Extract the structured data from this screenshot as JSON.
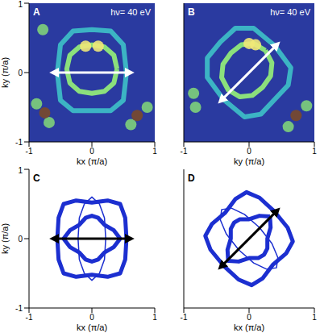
{
  "chart_data": [
    {
      "type": "scatter",
      "title": "A",
      "annotation": "hν= 40 eV",
      "xlabel": "kx (π/a)",
      "ylabel": "ky (π/a)",
      "xlim": [
        -1,
        1
      ],
      "ylim": [
        -1,
        1
      ],
      "xticks": [
        -1,
        0,
        1
      ],
      "yticks": [
        -1,
        0,
        1
      ],
      "series": [
        {
          "type": "line",
          "line_style": "solid",
          "color": "#3cb4c4",
          "x": [
            0.55,
            0.5,
            0.3,
            0,
            -0.3,
            -0.5,
            -0.55,
            -0.5,
            -0.3,
            0,
            0.3,
            0.5,
            0.55
          ],
          "y": [
            0,
            0.4,
            0.6,
            0.62,
            0.6,
            0.4,
            0,
            -0.4,
            -0.55,
            -0.55,
            -0.55,
            -0.4,
            0
          ]
        },
        {
          "type": "line",
          "line_style": "solid",
          "color": "#8be07c",
          "x": [
            0.4,
            0.35,
            0.2,
            0,
            -0.2,
            -0.35,
            -0.4,
            -0.35,
            -0.2,
            0,
            0.2,
            0.35,
            0.4
          ],
          "y": [
            0.05,
            0.25,
            0.37,
            0.4,
            0.37,
            0.25,
            0.05,
            -0.15,
            -0.27,
            -0.3,
            -0.27,
            -0.15,
            0.05
          ]
        },
        {
          "type": "scatter",
          "marker": "circle",
          "color": "#7ed27a",
          "x": [
            -0.88,
            -0.68,
            0.88,
            0.62,
            -0.78
          ],
          "y": [
            -0.45,
            -0.72,
            -0.5,
            -0.75,
            0.62
          ]
        },
        {
          "type": "scatter",
          "marker": "circle",
          "color": "#7a4a2a",
          "x": [
            -0.75,
            0.72
          ],
          "y": [
            -0.58,
            -0.62
          ]
        },
        {
          "type": "scatter",
          "marker": "circle",
          "color": "#f0e878",
          "x": [
            -0.1,
            0.1
          ],
          "y": [
            0.38,
            0.38
          ]
        }
      ]
    },
    {
      "type": "scatter",
      "title": "B",
      "annotation": "hν= 40 eV",
      "xlabel": "ky (π/a)",
      "xlim": [
        -1,
        1
      ],
      "ylim": [
        -1,
        1
      ],
      "xticks": [
        -1,
        0,
        1
      ],
      "yticks": [
        -1,
        0,
        1
      ],
      "tick_labels": "x",
      "series": [
        {
          "type": "line",
          "line_style": "solid",
          "color": "#3cb4c4",
          "x": [
            0.39,
            0.07,
            -0.21,
            -0.44,
            -0.64,
            -0.64,
            -0.39,
            -0.07,
            0.18,
            0.39,
            0.6,
            0.64,
            0.39
          ],
          "y": [
            0.39,
            0.64,
            0.64,
            0.44,
            0.21,
            -0.07,
            -0.39,
            -0.64,
            -0.6,
            -0.39,
            -0.18,
            0.07,
            0.39
          ]
        },
        {
          "type": "line",
          "line_style": "solid",
          "color": "#8be07c",
          "x": [
            0.25,
            0.07,
            -0.12,
            -0.28,
            -0.4,
            -0.42,
            -0.32,
            -0.14,
            0.05,
            0.21,
            0.33,
            0.35,
            0.25
          ],
          "y": [
            0.32,
            0.42,
            0.4,
            0.28,
            0.12,
            -0.07,
            -0.25,
            -0.35,
            -0.33,
            -0.21,
            -0.05,
            0.14,
            0.32
          ]
        },
        {
          "type": "scatter",
          "marker": "circle",
          "color": "#7ed27a",
          "x": [
            0.88,
            0.6,
            -0.85,
            -0.82
          ],
          "y": [
            -0.48,
            -0.78,
            -0.3,
            -0.5
          ]
        },
        {
          "type": "scatter",
          "marker": "circle",
          "color": "#7a4a2a",
          "x": [
            0.72
          ],
          "y": [
            -0.62
          ]
        },
        {
          "type": "scatter",
          "marker": "circle",
          "color": "#f0e878",
          "x": [
            0,
            0.1
          ],
          "y": [
            0.42,
            0.4
          ]
        }
      ]
    },
    {
      "type": "line",
      "title": "C",
      "xlabel": "kx (π/a)",
      "ylabel": "ky (π/a)",
      "xlim": [
        -1,
        1
      ],
      "ylim": [
        -1,
        1
      ],
      "xticks": [
        -1,
        0,
        1
      ],
      "yticks": [
        -1,
        0,
        1
      ],
      "series": [
        {
          "type": "line",
          "line_style": "solid",
          "color": "#1c2fd0",
          "x": [
            0.55,
            0.53,
            0.45,
            0.25,
            0,
            -0.25,
            -0.45,
            -0.53,
            -0.55,
            -0.53,
            -0.45,
            -0.25,
            0,
            0.25,
            0.45,
            0.53,
            0.55
          ],
          "y": [
            0,
            0.3,
            0.5,
            0.55,
            0.52,
            0.55,
            0.5,
            0.3,
            0,
            -0.3,
            -0.5,
            -0.55,
            -0.52,
            -0.55,
            -0.5,
            -0.3,
            0
          ]
        },
        {
          "type": "line",
          "line_style": "solid",
          "color": "#1c2fd0",
          "x": [
            0.45,
            0.35,
            0.2,
            0.1,
            0,
            -0.1,
            -0.2,
            -0.35,
            -0.45,
            -0.35,
            -0.2,
            -0.1,
            0,
            0.1,
            0.2,
            0.35,
            0.45
          ],
          "y": [
            0,
            0.12,
            0.2,
            0.3,
            0.33,
            0.3,
            0.2,
            0.12,
            0,
            -0.12,
            -0.2,
            -0.3,
            -0.33,
            -0.3,
            -0.2,
            -0.12,
            0
          ]
        },
        {
          "type": "line",
          "line_style": "thin",
          "color": "#1c2fd0",
          "x": [
            0.22,
            0.2,
            0.12,
            0,
            -0.12,
            -0.2,
            -0.22,
            -0.2,
            -0.12,
            0,
            0.12,
            0.2,
            0.22
          ],
          "y": [
            0,
            0.3,
            0.5,
            0.6,
            0.5,
            0.3,
            0,
            -0.3,
            -0.5,
            -0.6,
            -0.5,
            -0.3,
            0
          ]
        }
      ]
    },
    {
      "type": "line",
      "title": "D",
      "xlabel": "kx (π/a)",
      "xlim": [
        -1,
        1
      ],
      "ylim": [
        -1,
        1
      ],
      "xticks": [
        -1,
        0,
        1
      ],
      "yticks": [
        -1,
        0,
        1
      ],
      "tick_labels": "x",
      "series": [
        {
          "type": "line",
          "line_style": "solid",
          "color": "#1c2fd0",
          "x": [
            0.39,
            0.16,
            -0.04,
            -0.21,
            -0.37,
            -0.57,
            -0.67,
            -0.59,
            -0.39,
            -0.16,
            0.04,
            0.21,
            0.37,
            0.57,
            0.67,
            0.59,
            0.39
          ],
          "y": [
            0.39,
            0.59,
            0.67,
            0.57,
            0.37,
            0.21,
            0.04,
            -0.16,
            -0.39,
            -0.59,
            -0.67,
            -0.57,
            -0.37,
            -0.21,
            -0.04,
            0.16,
            0.39
          ]
        },
        {
          "type": "line",
          "line_style": "solid",
          "color": "#1c2fd0",
          "x": [
            0.32,
            0.16,
            0,
            -0.14,
            -0.23,
            -0.28,
            -0.28,
            -0.33,
            -0.32,
            -0.16,
            0,
            0.14,
            0.23,
            0.28,
            0.28,
            0.33,
            0.32
          ],
          "y": [
            0.32,
            0.33,
            0.28,
            0.28,
            0.23,
            0.14,
            0,
            -0.16,
            -0.32,
            -0.33,
            -0.28,
            -0.28,
            -0.23,
            -0.14,
            0,
            0.16,
            0.32
          ]
        },
        {
          "type": "line",
          "line_style": "thin",
          "color": "#1c2fd0",
          "x": [
            0.16,
            -0.07,
            -0.27,
            -0.42,
            -0.44,
            -0.35,
            -0.16,
            0.07,
            0.27,
            0.42,
            0.44,
            0.35,
            0.16
          ],
          "y": [
            0.16,
            0.35,
            0.44,
            0.42,
            0.27,
            0.07,
            -0.16,
            -0.35,
            -0.44,
            -0.42,
            -0.27,
            -0.07,
            0.16
          ]
        }
      ]
    }
  ]
}
